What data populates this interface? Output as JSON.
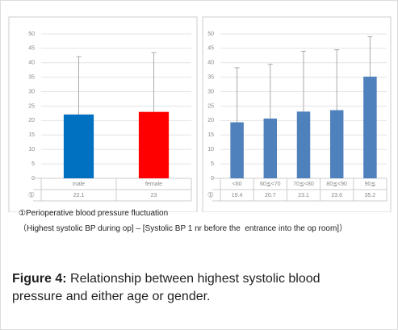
{
  "chart_data": [
    {
      "type": "bar",
      "categories": [
        "male",
        "female"
      ],
      "series": [
        {
          "name": "①",
          "colors": [
            "#0070c0",
            "#ff0000"
          ],
          "values": [
            22.1,
            23
          ],
          "errors": [
            20,
            20.5
          ]
        }
      ],
      "ylim": [
        0,
        50
      ],
      "yticks": [
        0,
        5,
        10,
        15,
        20,
        25,
        30,
        35,
        40,
        45,
        50
      ]
    },
    {
      "type": "bar",
      "categories": [
        "<60",
        "60≦<70",
        "70≦<80",
        "80≦<90",
        "90≦"
      ],
      "series": [
        {
          "name": "①",
          "color": "#4f81bd",
          "values": [
            19.4,
            20.7,
            23.1,
            23.6,
            35.2
          ],
          "errors": [
            18.9,
            18.8,
            20.9,
            20.9,
            13.8
          ]
        }
      ],
      "ylim": [
        0,
        50
      ],
      "yticks": [
        0,
        5,
        10,
        15,
        20,
        25,
        30,
        35,
        40,
        45,
        50
      ]
    }
  ],
  "note": {
    "line1": "①Perioperative blood pressure fluctuation",
    "line2": "（Highest systolic BP during op] – [Systolic BP 1 nr before the  entrance into the op room]）"
  },
  "caption": {
    "label": "Figure 4:",
    "text": " Relationship between highest systolic blood pressure and either age or gender."
  }
}
